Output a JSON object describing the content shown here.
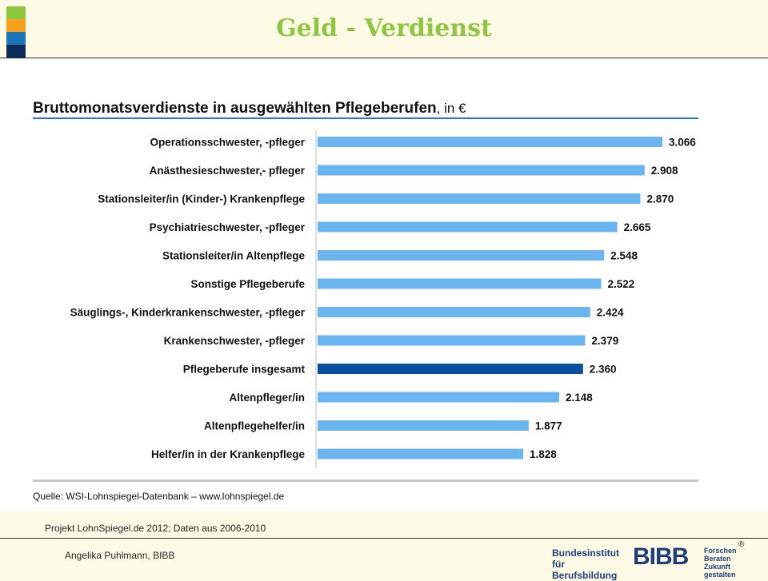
{
  "slide": {
    "title": "Geld - Verdienst",
    "footer_note": "Projekt LohnSpiegel.de 2012; Daten aus 2006-2010",
    "author": "Angelika Puhlmann, BIBB",
    "accent_colors": [
      "#8dc63f",
      "#f7a11a",
      "#1b75bb",
      "#0c2d5a"
    ]
  },
  "logo": {
    "name_line1": "Bundesinstitut",
    "name_line2": "für Berufsbildung",
    "mark": "BIBB",
    "tagline1": "Forschen",
    "tagline2": "Beraten",
    "tagline3": "Zukunft gestalten",
    "registered": "®"
  },
  "chart_data": {
    "type": "bar",
    "orientation": "horizontal",
    "title": "Bruttomonatsverdienste in ausgewählten Pflegeberufen",
    "title_suffix": ", in €",
    "source": "Quelle: WSI-Lohnspiegel-Datenbank  –  www.lohnspiegel.de",
    "categories": [
      "Operationsschwester, -pfleger",
      "Anästhesieschwester,- pfleger",
      "Stationsleiter/in (Kinder-) Krankenpflege",
      "Psychiatrieschwester, -pfleger",
      "Stationsleiter/in Altenpflege",
      "Sonstige Pflegeberufe",
      "Säuglings-, Kinderkrankenschwester, -pfleger",
      "Krankenschwester, -pfleger",
      "Pflegeberufe insgesamt",
      "Altenpfleger/in",
      "Altenpflegehelfer/in",
      "Helfer/in in der Krankenpflege"
    ],
    "values": [
      3066,
      2908,
      2870,
      2665,
      2548,
      2522,
      2424,
      2379,
      2360,
      2148,
      1877,
      1828
    ],
    "value_labels": [
      "3.066",
      "2.908",
      "2.870",
      "2.665",
      "2.548",
      "2.522",
      "2.424",
      "2.379",
      "2.360",
      "2.148",
      "1.877",
      "1.828"
    ],
    "highlight_index": 8,
    "xlim": [
      0,
      3066
    ],
    "colors": {
      "bar": "#6ab4f0",
      "highlight": "#0a4ea0"
    },
    "grid": false,
    "legend": "none"
  }
}
